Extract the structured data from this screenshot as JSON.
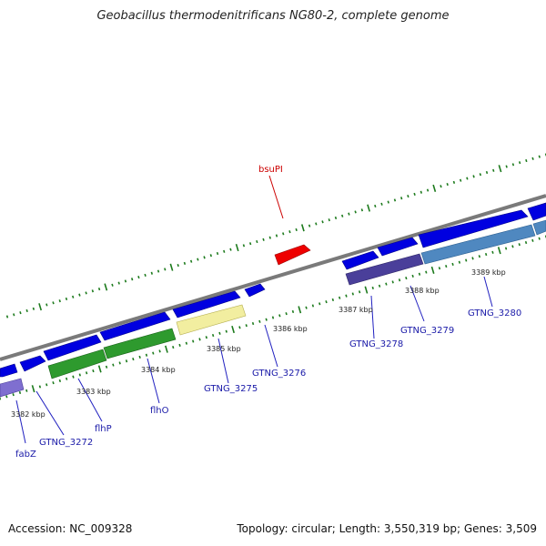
{
  "title": "Geobacillus thermodenitrificans NG80-2, complete genome",
  "footer": {
    "accession": "Accession: NC_009328",
    "summary": "Topology: circular; Length: 3,550,319 bp; Genes: 3,509"
  },
  "colors": {
    "backbone": "#808080",
    "forward_gene": "#0000e0",
    "annotated_green": "#2e9a2e",
    "annotated_yellow": "#f2eea0",
    "annotated_purple": "#4a3f9a",
    "annotated_steel": "#4f88c0",
    "annotated_lavender": "#7f6fd0",
    "rna_gene": "#e00000",
    "ticks": "#1c7a1c",
    "label_line": "#2020c0"
  },
  "tick_labels": [
    "3382 kbp",
    "3383 kbp",
    "3384 kbp",
    "3385 kbp",
    "3386 kbp",
    "3387 kbp",
    "3388 kbp",
    "3389 kbp"
  ],
  "gene_labels": [
    "fabZ",
    "GTNG_3272",
    "flhP",
    "flhO",
    "GTNG_3275",
    "GTNG_3276",
    "GTNG_3278",
    "GTNG_3279",
    "GTNG_3280",
    "bsuPI"
  ]
}
